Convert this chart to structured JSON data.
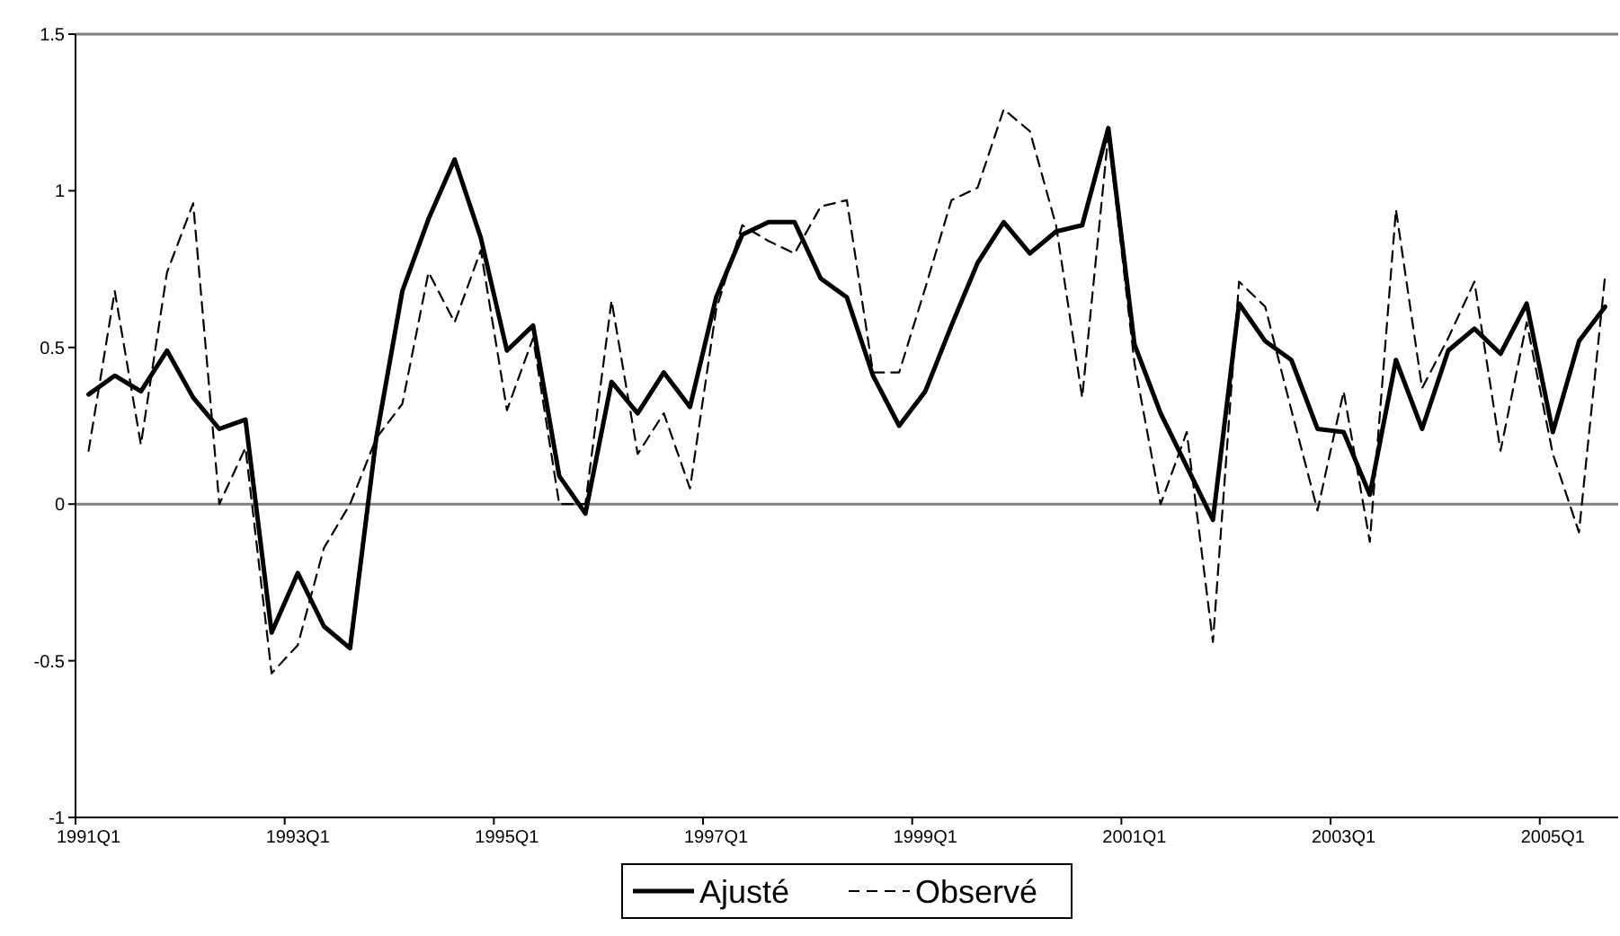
{
  "chart_data": {
    "type": "line",
    "categories": [
      "1991Q1",
      null,
      null,
      null,
      null,
      null,
      null,
      null,
      "1993Q1",
      null,
      null,
      null,
      null,
      null,
      null,
      null,
      "1995Q1",
      null,
      null,
      null,
      null,
      null,
      null,
      null,
      "1997Q1",
      null,
      null,
      null,
      null,
      null,
      null,
      null,
      "1999Q1",
      null,
      null,
      null,
      null,
      null,
      null,
      null,
      "2001Q1",
      null,
      null,
      null,
      null,
      null,
      null,
      null,
      "2003Q1",
      null,
      null,
      null,
      null,
      null,
      null,
      null,
      "2005Q1",
      null,
      null
    ],
    "series": [
      {
        "name": "Ajusté",
        "color": "#000000",
        "line_style": "solid",
        "values": [
          0.35,
          0.41,
          0.36,
          0.49,
          0.34,
          0.24,
          0.27,
          -0.41,
          -0.22,
          -0.39,
          -0.46,
          0.21,
          0.68,
          0.91,
          1.1,
          0.85,
          0.49,
          0.57,
          0.09,
          -0.03,
          0.39,
          0.29,
          0.42,
          0.31,
          0.66,
          0.86,
          0.9,
          0.9,
          0.72,
          0.66,
          0.41,
          0.25,
          0.36,
          0.57,
          0.77,
          0.9,
          0.8,
          0.87,
          0.89,
          1.2,
          0.51,
          0.29,
          0.12,
          -0.05,
          0.64,
          0.52,
          0.46,
          0.24,
          0.23,
          0.03,
          0.46,
          0.24,
          0.49,
          0.56,
          0.48,
          0.64,
          0.23,
          0.52,
          0.63
        ]
      },
      {
        "name": "Observé",
        "color": "#000000",
        "line_style": "dashed",
        "values": [
          0.17,
          0.68,
          0.19,
          0.74,
          0.96,
          0.0,
          0.18,
          -0.54,
          -0.45,
          -0.14,
          0.0,
          0.21,
          0.32,
          0.74,
          0.58,
          0.81,
          0.3,
          0.53,
          0.0,
          0.0,
          0.65,
          0.16,
          0.29,
          0.05,
          0.62,
          0.89,
          0.84,
          0.8,
          0.95,
          0.97,
          0.42,
          0.42,
          0.69,
          0.97,
          1.01,
          1.26,
          1.19,
          0.89,
          0.34,
          1.18,
          0.45,
          0.0,
          0.23,
          -0.44,
          0.71,
          0.63,
          0.3,
          -0.02,
          0.36,
          -0.12,
          0.94,
          0.37,
          0.53,
          0.71,
          0.17,
          0.58,
          0.16,
          -0.09,
          0.73
        ]
      }
    ],
    "ylim": [
      -1,
      1.5
    ],
    "yticks": [
      -1,
      -0.5,
      0,
      0.5,
      1,
      1.5
    ],
    "grid": false,
    "legend": "bottom",
    "ref_lines": [
      {
        "axis": "y",
        "value": 0,
        "color": "#808080"
      }
    ]
  }
}
